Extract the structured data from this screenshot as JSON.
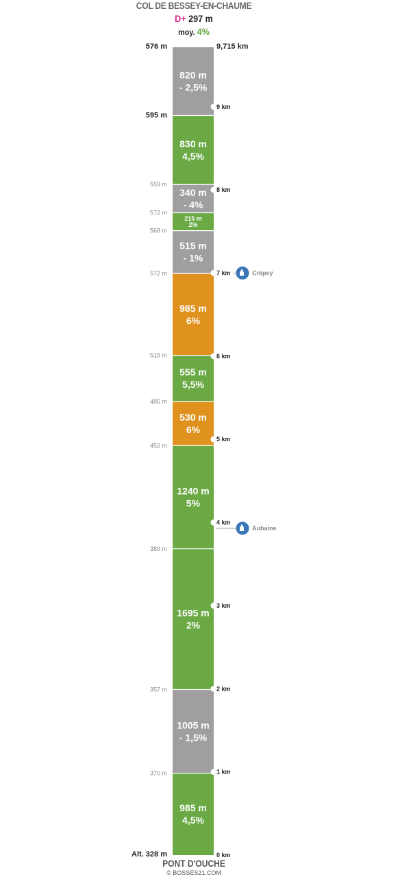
{
  "header": {
    "climb_name": "COL DE BESSEY-EN-CHAUME",
    "dplus_prefix": "D+",
    "dplus_value": "297 m",
    "avg_prefix": "moy.",
    "avg_value": "4%"
  },
  "footer": {
    "start_name": "PONT D'OUCHE",
    "credit": "© BOSSES21.COM"
  },
  "colors": {
    "green": "#6aa944",
    "grey": "#a09e9f",
    "orange": "#e0921f",
    "town_marker": "#3c76b8",
    "dplus_accent": "#e0218a"
  },
  "chart_data": {
    "type": "bar",
    "orientation": "vertical-strip",
    "total_distance_km": 9.715,
    "total_distance_label": "9,715 km",
    "start_altitude_m": 328,
    "start_altitude_label": "Alt. 328 m",
    "summit_altitude_label": "576 m",
    "segments": [
      {
        "length_m": 985,
        "length_label": "985 m",
        "grade_label": "4,5%",
        "grade": 4.5,
        "color": "green",
        "top_altitude_label": "370 m"
      },
      {
        "length_m": 1005,
        "length_label": "1005 m",
        "grade_label": "- 1,5%",
        "grade": -1.5,
        "color": "grey",
        "top_altitude_label": "357 m"
      },
      {
        "length_m": 1695,
        "length_label": "1695 m",
        "grade_label": "2%",
        "grade": 2,
        "color": "green",
        "top_altitude_label": "389 m"
      },
      {
        "length_m": 1240,
        "length_label": "1240 m",
        "grade_label": "5%",
        "grade": 5,
        "color": "green",
        "top_altitude_label": "452 m"
      },
      {
        "length_m": 530,
        "length_label": "530 m",
        "grade_label": "6%",
        "grade": 6,
        "color": "orange",
        "top_altitude_label": "485 m"
      },
      {
        "length_m": 555,
        "length_label": "555 m",
        "grade_label": "5,5%",
        "grade": 5.5,
        "color": "green",
        "top_altitude_label": "515 m"
      },
      {
        "length_m": 985,
        "length_label": "985 m",
        "grade_label": "6%",
        "grade": 6,
        "color": "orange",
        "top_altitude_label": "572 m"
      },
      {
        "length_m": 515,
        "length_label": "515 m",
        "grade_label": "- 1%",
        "grade": -1,
        "color": "grey",
        "top_altitude_label": "568 m"
      },
      {
        "length_m": 215,
        "length_label": "215 m",
        "grade_label": "2%",
        "grade": 2,
        "color": "green",
        "top_altitude_label": "572 m"
      },
      {
        "length_m": 340,
        "length_label": "340 m",
        "grade_label": "- 4%",
        "grade": -4,
        "color": "grey",
        "top_altitude_label": "559 m"
      },
      {
        "length_m": 830,
        "length_label": "830 m",
        "grade_label": "4,5%",
        "grade": 4.5,
        "color": "green",
        "top_altitude_label": "595 m"
      },
      {
        "length_m": 820,
        "length_label": "820 m",
        "grade_label": "- 2,5%",
        "grade": -2.5,
        "color": "grey",
        "top_altitude_label": ""
      }
    ],
    "km_markers": [
      {
        "km": 0,
        "label": "0 km"
      },
      {
        "km": 1,
        "label": "1 km"
      },
      {
        "km": 2,
        "label": "2 km"
      },
      {
        "km": 3,
        "label": "3 km"
      },
      {
        "km": 4,
        "label": "4 km"
      },
      {
        "km": 5,
        "label": "5 km"
      },
      {
        "km": 6,
        "label": "6 km"
      },
      {
        "km": 7,
        "label": "7 km"
      },
      {
        "km": 8,
        "label": "8 km"
      },
      {
        "km": 9,
        "label": "9 km"
      }
    ],
    "towns": [
      {
        "name": "Aubaine",
        "km": 3.93
      },
      {
        "name": "Crépey",
        "km": 7.0
      }
    ]
  }
}
